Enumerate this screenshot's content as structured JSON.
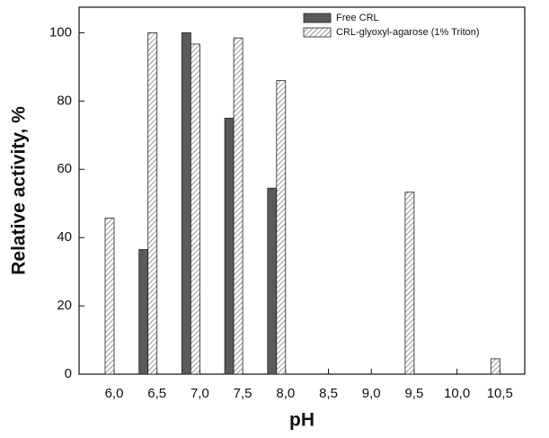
{
  "chart_data": {
    "type": "bar",
    "x_label": "pH",
    "y_label": "Relative activity, %",
    "categories": [
      "6,0",
      "6,5",
      "7,0",
      "7,5",
      "8,0",
      "8,5",
      "9,0",
      "9,5",
      "10,0",
      "10,5"
    ],
    "series": [
      {
        "name": "Free CRL",
        "color": "#5a5a5a",
        "values": [
          null,
          36.5,
          100,
          75,
          54.5,
          null,
          null,
          null,
          null,
          null
        ]
      },
      {
        "name": "CRL-glyoxyl-agarose (1% Triton)",
        "color": "hatched",
        "values": [
          45.7,
          100,
          96.7,
          98.5,
          86,
          null,
          null,
          53.3,
          null,
          4.5
        ]
      }
    ],
    "ylim": [
      0,
      107.5
    ],
    "yticks": [
      0,
      20,
      40,
      60,
      80,
      100
    ],
    "legend": "upper right"
  }
}
